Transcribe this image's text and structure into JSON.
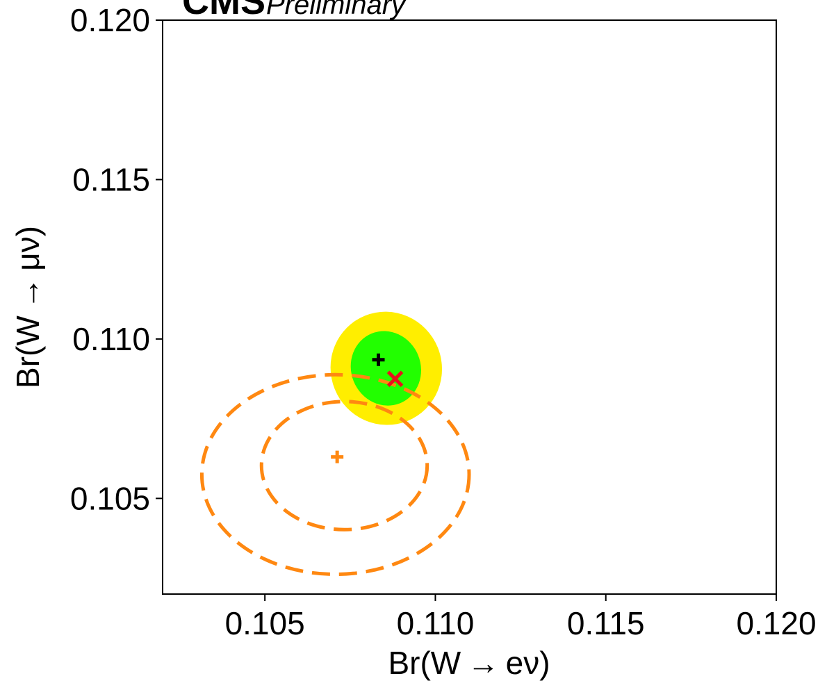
{
  "header": {
    "experiment": "CMS",
    "status": "Preliminary"
  },
  "chart_data": {
    "type": "scatter",
    "title": "",
    "xlabel": "Br(W → eν)",
    "ylabel": "Br(W → μν)",
    "xlim": [
      0.102,
      0.12
    ],
    "ylim": [
      0.102,
      0.12
    ],
    "xticks": [
      0.105,
      0.11,
      0.115,
      0.12
    ],
    "yticks": [
      0.105,
      0.11,
      0.115,
      0.12
    ],
    "xtick_labels": [
      "0.105",
      "0.110",
      "0.115",
      "0.120"
    ],
    "ytick_labels": [
      "0.105",
      "0.110",
      "0.115",
      "0.120"
    ],
    "grid": false,
    "series": [
      {
        "kind": "filled-contour",
        "level": "outer",
        "center": [
          0.10856,
          0.10908
        ],
        "semi_axes": [
          0.00163,
          0.00178
        ],
        "rotation_deg": -22,
        "color": "#ffee00"
      },
      {
        "kind": "filled-contour",
        "level": "inner",
        "center": [
          0.10855,
          0.10908
        ],
        "semi_axes": [
          0.00102,
          0.00118
        ],
        "rotation_deg": -22,
        "color": "#22ff00"
      },
      {
        "kind": "dashed-contour",
        "level": "outer",
        "center": [
          0.10707,
          0.10575
        ],
        "semi_axes": [
          0.00392,
          0.00313
        ],
        "rotation_deg": 0,
        "color": "#ff8811"
      },
      {
        "kind": "dashed-contour",
        "level": "inner",
        "center": [
          0.10733,
          0.10603
        ],
        "semi_axes": [
          0.00243,
          0.00201
        ],
        "rotation_deg": 0,
        "color": "#ff8811"
      },
      {
        "kind": "marker",
        "marker": "plus",
        "x": 0.10833,
        "y": 0.10935,
        "color": "#000000"
      },
      {
        "kind": "marker",
        "marker": "x",
        "x": 0.10882,
        "y": 0.10875,
        "color": "#e8131c"
      },
      {
        "kind": "marker",
        "marker": "plus",
        "x": 0.10712,
        "y": 0.1063,
        "color": "#ff8811"
      }
    ]
  }
}
